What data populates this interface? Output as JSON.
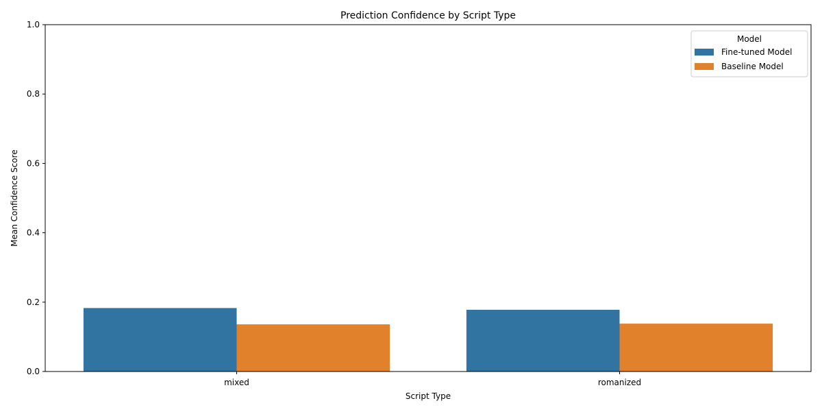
{
  "chart_data": {
    "type": "bar",
    "title": "Prediction Confidence by Script Type",
    "xlabel": "Script Type",
    "ylabel": "Mean Confidence Score",
    "categories": [
      "mixed",
      "romanized"
    ],
    "series": [
      {
        "name": "Fine-tuned Model",
        "values": [
          0.183,
          0.178
        ],
        "color": "#3274a1"
      },
      {
        "name": "Baseline Model",
        "values": [
          0.136,
          0.138
        ],
        "color": "#e1812c"
      }
    ],
    "ylim": [
      0,
      1.0
    ],
    "yticks": [
      0.0,
      0.2,
      0.4,
      0.6,
      0.8,
      1.0
    ],
    "ytick_labels": [
      "0.0",
      "0.2",
      "0.4",
      "0.6",
      "0.8",
      "1.0"
    ],
    "grid": false,
    "legend": {
      "title": "Model",
      "placement": "top-right"
    }
  }
}
